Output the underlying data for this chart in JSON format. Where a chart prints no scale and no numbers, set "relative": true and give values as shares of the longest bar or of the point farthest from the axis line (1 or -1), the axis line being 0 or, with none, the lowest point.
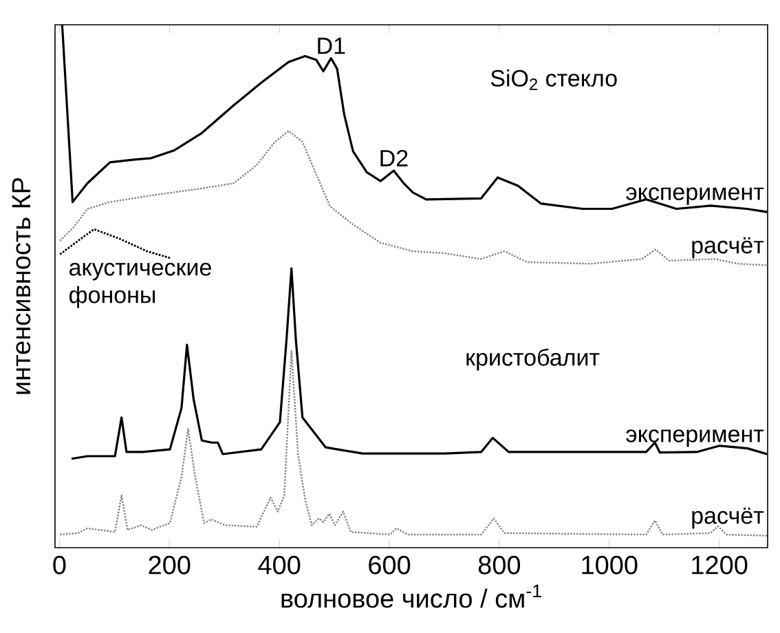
{
  "chart_data": {
    "type": "line",
    "relative": true,
    "xlabel": "волновое число / см$^{-1}$",
    "ylabel": "интенсивность КР",
    "xlim": [
      -8,
      1288
    ],
    "xticks": [
      0,
      200,
      400,
      600,
      800,
      1000,
      1200
    ],
    "grid": false,
    "marker": "none",
    "annotations": [
      {
        "text": "D1",
        "x": 494,
        "y": 0.936
      },
      {
        "text": "D2",
        "x": 608,
        "y": 0.721
      },
      "SiO$_{2}$ стекло",
      "кристобалит"
    ],
    "series": [
      {
        "name": "эксперимент",
        "color": "#000000",
        "line_style": "solid",
        "x": [
          5,
          24,
          51,
          92,
          134,
          167,
          209,
          259,
          317,
          367,
          417,
          447,
          467,
          480,
          494,
          505,
          518,
          534,
          559,
          584,
          608,
          626,
          643,
          667,
          767,
          797,
          834,
          876,
          951,
          1005,
          1067,
          1122,
          1184,
          1250,
          1287
        ],
        "values": [
          1.0,
          0.661,
          0.697,
          0.737,
          0.742,
          0.745,
          0.76,
          0.793,
          0.846,
          0.889,
          0.929,
          0.94,
          0.933,
          0.911,
          0.936,
          0.916,
          0.828,
          0.758,
          0.718,
          0.701,
          0.721,
          0.697,
          0.679,
          0.666,
          0.668,
          0.708,
          0.692,
          0.658,
          0.648,
          0.648,
          0.666,
          0.648,
          0.654,
          0.648,
          0.642
        ]
      },
      {
        "name": "расчёт",
        "color": "#808080",
        "line_style": "dotted",
        "x": [
          1,
          26,
          51,
          92,
          176,
          259,
          317,
          359,
          392,
          417,
          442,
          467,
          492,
          534,
          584,
          643,
          701,
          767,
          809,
          851,
          967,
          1059,
          1084,
          1109,
          1192,
          1234,
          1287
        ],
        "values": [
          0.587,
          0.613,
          0.648,
          0.661,
          0.675,
          0.687,
          0.697,
          0.732,
          0.776,
          0.797,
          0.776,
          0.714,
          0.653,
          0.618,
          0.583,
          0.567,
          0.563,
          0.552,
          0.567,
          0.546,
          0.543,
          0.552,
          0.57,
          0.549,
          0.552,
          0.543,
          0.54
        ]
      },
      {
        "name": "акустические фононы",
        "color": "#000000",
        "line_style": "dotted",
        "x": [
          1,
          34,
          63,
          109,
          159,
          201
        ],
        "values": [
          0.561,
          0.587,
          0.609,
          0.591,
          0.567,
          0.554
        ]
      },
      {
        "name": "эксперимент",
        "color": "#000000",
        "line_style": "solid",
        "x": [
          22,
          51,
          101,
          113,
          122,
          151,
          201,
          222,
          232,
          244,
          259,
          277,
          288,
          297,
          367,
          401,
          413,
          422,
          430,
          442,
          484,
          551,
          643,
          701,
          767,
          788,
          817,
          1034,
          1067,
          1083,
          1092,
          1159,
          1201,
          1251,
          1287
        ],
        "values": [
          0.17,
          0.175,
          0.175,
          0.249,
          0.183,
          0.183,
          0.188,
          0.267,
          0.388,
          0.284,
          0.205,
          0.201,
          0.201,
          0.179,
          0.188,
          0.24,
          0.398,
          0.534,
          0.398,
          0.249,
          0.192,
          0.18,
          0.18,
          0.18,
          0.183,
          0.21,
          0.183,
          0.183,
          0.183,
          0.201,
          0.182,
          0.183,
          0.195,
          0.19,
          0.179
        ]
      },
      {
        "name": "расчёт",
        "color": "#808080",
        "line_style": "dotted",
        "x": [
          1,
          34,
          51,
          101,
          113,
          124,
          149,
          168,
          201,
          222,
          234,
          247,
          263,
          276,
          301,
          359,
          384,
          397,
          409,
          422,
          434,
          447,
          459,
          472,
          480,
          491,
          501,
          516,
          530,
          601,
          613,
          634,
          767,
          790,
          809,
          1067,
          1083,
          1097,
          1184,
          1198,
          1213,
          1287
        ],
        "values": [
          0.025,
          0.028,
          0.037,
          0.03,
          0.1,
          0.034,
          0.043,
          0.034,
          0.047,
          0.135,
          0.227,
          0.135,
          0.047,
          0.054,
          0.043,
          0.04,
          0.096,
          0.069,
          0.1,
          0.376,
          0.179,
          0.091,
          0.043,
          0.056,
          0.049,
          0.065,
          0.043,
          0.069,
          0.03,
          0.025,
          0.037,
          0.025,
          0.025,
          0.056,
          0.028,
          0.025,
          0.052,
          0.025,
          0.028,
          0.041,
          0.025,
          0.023
        ]
      }
    ]
  }
}
